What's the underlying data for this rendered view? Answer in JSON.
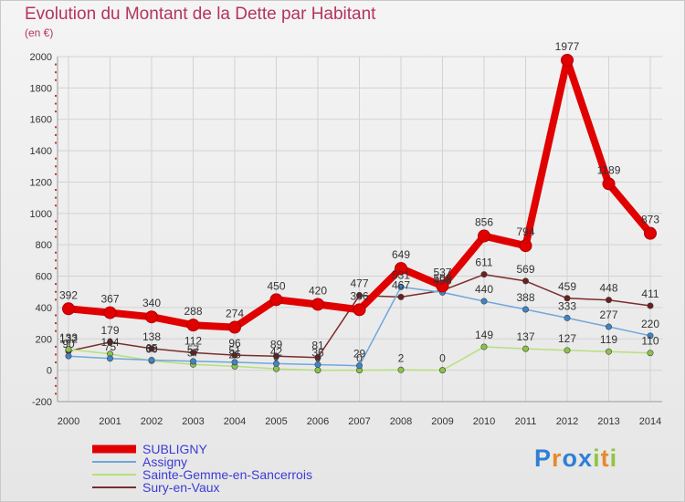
{
  "title": "Evolution du Montant de la Dette par Habitant",
  "unit": "(en €)",
  "brand": {
    "letters": [
      "P",
      "r",
      "o",
      "x",
      "i",
      "t",
      "i"
    ],
    "colors": [
      "#2f7fd6",
      "#e8892a",
      "#2f7fd6",
      "#2f7fd6",
      "#8ec641",
      "#e8892a",
      "#8ec641"
    ]
  },
  "chart_data": {
    "type": "line",
    "x": [
      "2000",
      "2001",
      "2002",
      "2003",
      "2004",
      "2005",
      "2006",
      "2007",
      "2008",
      "2009",
      "2010",
      "2011",
      "2012",
      "2013",
      "2014"
    ],
    "ylim": [
      -200,
      2000
    ],
    "yticks": [
      "-200",
      "0",
      "200",
      "400",
      "600",
      "800",
      "1000",
      "1200",
      "1400",
      "1600",
      "1800",
      "2000"
    ],
    "grid": true,
    "legend_position": "bottom-left",
    "series": [
      {
        "name": "SUBLIGNY",
        "color": "#e00000",
        "marker_color": "#e00000",
        "label_color": "#333333",
        "values": [
          392,
          367,
          340,
          288,
          274,
          450,
          420,
          386,
          649,
          537,
          856,
          794,
          1977,
          1189,
          873
        ],
        "labels": [
          "392",
          "367",
          "340",
          "288",
          "274",
          "450",
          "420",
          "386",
          "649",
          "537",
          "856",
          "794",
          "1977",
          "1189",
          "873"
        ]
      },
      {
        "name": "Assigny",
        "color": "#6fa8dc",
        "marker_color": "#3d85c6",
        "label_color": "#333333",
        "values": [
          90,
          75,
          65,
          57,
          51,
          42,
          36,
          29,
          531,
          496,
          440,
          388,
          333,
          277,
          220
        ],
        "labels": [
          "90",
          "75",
          "65",
          "57",
          "51",
          "42",
          "36",
          "29",
          "531",
          "496",
          "440",
          "388",
          "333",
          "277",
          "220"
        ]
      },
      {
        "name": "Sainte-Gemme-en-Sancerrois",
        "color": "#b6e07a",
        "marker_color": "#8bc34a",
        "label_color": "#333333",
        "values": [
          133,
          104,
          60,
          37,
          25,
          9,
          0,
          0,
          2,
          0,
          149,
          137,
          127,
          119,
          110
        ],
        "labels": [
          "133",
          "104",
          "60",
          "37",
          "25",
          "9",
          "0",
          "0",
          "2",
          "0",
          "149",
          "137",
          "127",
          "119",
          "110"
        ]
      },
      {
        "name": "Sury-en-Vaux",
        "color": "#7b2c2c",
        "marker_color": "#6b1f1f",
        "label_color": "#333333",
        "values": [
          122,
          179,
          138,
          112,
          96,
          89,
          81,
          477,
          467,
          509,
          611,
          569,
          459,
          448,
          411
        ],
        "labels": [
          "122",
          "179",
          "138",
          "112",
          "96",
          "89",
          "81",
          "477",
          "467",
          "509",
          "611",
          "569",
          "459",
          "448",
          "411"
        ]
      }
    ]
  }
}
